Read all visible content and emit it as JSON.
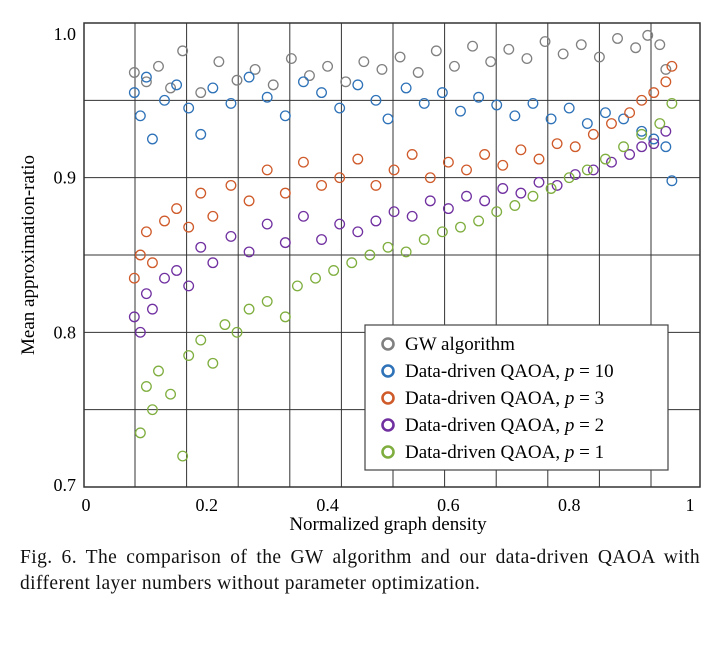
{
  "chart_data": {
    "type": "scatter",
    "xlabel": "Normalized graph density",
    "ylabel": "Mean approximation-ratio",
    "xlim": [
      0,
      1.02
    ],
    "ylim": [
      0.7,
      1.0
    ],
    "xticks": [
      0,
      0.2,
      0.4,
      0.6,
      0.8,
      1
    ],
    "xtick_labels": [
      "0",
      "0.2",
      "0.4",
      "0.6",
      "0.8",
      "1"
    ],
    "yticks": [
      0.7,
      0.8,
      0.9,
      1.0
    ],
    "ytick_labels": [
      "0.7",
      "0.8",
      "0.9",
      "1.0"
    ],
    "grid": true,
    "legend_placement": "bottom-right",
    "marker": "open-circle",
    "series": [
      {
        "name": "GW algorithm",
        "legend_text": "GW algorithm",
        "legend_p": "",
        "color": "#808080",
        "points": [
          [
            0.08,
            0.968
          ],
          [
            0.1,
            0.962
          ],
          [
            0.12,
            0.972
          ],
          [
            0.14,
            0.958
          ],
          [
            0.16,
            0.982
          ],
          [
            0.19,
            0.955
          ],
          [
            0.22,
            0.975
          ],
          [
            0.25,
            0.963
          ],
          [
            0.28,
            0.97
          ],
          [
            0.31,
            0.96
          ],
          [
            0.34,
            0.977
          ],
          [
            0.37,
            0.966
          ],
          [
            0.4,
            0.972
          ],
          [
            0.43,
            0.962
          ],
          [
            0.46,
            0.975
          ],
          [
            0.49,
            0.97
          ],
          [
            0.52,
            0.978
          ],
          [
            0.55,
            0.968
          ],
          [
            0.58,
            0.982
          ],
          [
            0.61,
            0.972
          ],
          [
            0.64,
            0.985
          ],
          [
            0.67,
            0.975
          ],
          [
            0.7,
            0.983
          ],
          [
            0.73,
            0.977
          ],
          [
            0.76,
            0.988
          ],
          [
            0.79,
            0.98
          ],
          [
            0.82,
            0.986
          ],
          [
            0.85,
            0.978
          ],
          [
            0.88,
            0.99
          ],
          [
            0.91,
            0.984
          ],
          [
            0.93,
            0.992
          ],
          [
            0.95,
            0.986
          ],
          [
            0.96,
            0.97
          ]
        ]
      },
      {
        "name": "Data-driven QAOA, p = 10",
        "legend_text": "Data-driven QAOA, ",
        "legend_p": "p",
        "legend_val": " = 10",
        "color": "#2e72b8",
        "points": [
          [
            0.08,
            0.955
          ],
          [
            0.09,
            0.94
          ],
          [
            0.1,
            0.965
          ],
          [
            0.11,
            0.925
          ],
          [
            0.13,
            0.95
          ],
          [
            0.15,
            0.96
          ],
          [
            0.17,
            0.945
          ],
          [
            0.19,
            0.928
          ],
          [
            0.21,
            0.958
          ],
          [
            0.24,
            0.948
          ],
          [
            0.27,
            0.965
          ],
          [
            0.3,
            0.952
          ],
          [
            0.33,
            0.94
          ],
          [
            0.36,
            0.962
          ],
          [
            0.39,
            0.955
          ],
          [
            0.42,
            0.945
          ],
          [
            0.45,
            0.96
          ],
          [
            0.48,
            0.95
          ],
          [
            0.5,
            0.938
          ],
          [
            0.53,
            0.958
          ],
          [
            0.56,
            0.948
          ],
          [
            0.59,
            0.955
          ],
          [
            0.62,
            0.943
          ],
          [
            0.65,
            0.952
          ],
          [
            0.68,
            0.947
          ],
          [
            0.71,
            0.94
          ],
          [
            0.74,
            0.948
          ],
          [
            0.77,
            0.938
          ],
          [
            0.8,
            0.945
          ],
          [
            0.83,
            0.935
          ],
          [
            0.86,
            0.942
          ],
          [
            0.89,
            0.938
          ],
          [
            0.92,
            0.93
          ],
          [
            0.94,
            0.925
          ],
          [
            0.96,
            0.92
          ],
          [
            0.97,
            0.898
          ]
        ]
      },
      {
        "name": "Data-driven QAOA, p = 3",
        "legend_text": "Data-driven QAOA, ",
        "legend_p": "p",
        "legend_val": " = 3",
        "color": "#cf5a2a",
        "points": [
          [
            0.08,
            0.835
          ],
          [
            0.09,
            0.85
          ],
          [
            0.1,
            0.865
          ],
          [
            0.11,
            0.845
          ],
          [
            0.13,
            0.872
          ],
          [
            0.15,
            0.88
          ],
          [
            0.17,
            0.868
          ],
          [
            0.19,
            0.89
          ],
          [
            0.21,
            0.875
          ],
          [
            0.24,
            0.895
          ],
          [
            0.27,
            0.885
          ],
          [
            0.3,
            0.905
          ],
          [
            0.33,
            0.89
          ],
          [
            0.36,
            0.91
          ],
          [
            0.39,
            0.895
          ],
          [
            0.42,
            0.9
          ],
          [
            0.45,
            0.912
          ],
          [
            0.48,
            0.895
          ],
          [
            0.51,
            0.905
          ],
          [
            0.54,
            0.915
          ],
          [
            0.57,
            0.9
          ],
          [
            0.6,
            0.91
          ],
          [
            0.63,
            0.905
          ],
          [
            0.66,
            0.915
          ],
          [
            0.69,
            0.908
          ],
          [
            0.72,
            0.918
          ],
          [
            0.75,
            0.912
          ],
          [
            0.78,
            0.922
          ],
          [
            0.81,
            0.92
          ],
          [
            0.84,
            0.928
          ],
          [
            0.87,
            0.935
          ],
          [
            0.9,
            0.942
          ],
          [
            0.92,
            0.95
          ],
          [
            0.94,
            0.955
          ],
          [
            0.96,
            0.962
          ],
          [
            0.97,
            0.972
          ]
        ]
      },
      {
        "name": "Data-driven QAOA, p = 2",
        "legend_text": "Data-driven QAOA, ",
        "legend_p": "p",
        "legend_val": " = 2",
        "color": "#7030a0",
        "points": [
          [
            0.08,
            0.81
          ],
          [
            0.09,
            0.8
          ],
          [
            0.1,
            0.825
          ],
          [
            0.11,
            0.815
          ],
          [
            0.13,
            0.835
          ],
          [
            0.15,
            0.84
          ],
          [
            0.17,
            0.83
          ],
          [
            0.19,
            0.855
          ],
          [
            0.21,
            0.845
          ],
          [
            0.24,
            0.862
          ],
          [
            0.27,
            0.852
          ],
          [
            0.3,
            0.87
          ],
          [
            0.33,
            0.858
          ],
          [
            0.36,
            0.875
          ],
          [
            0.39,
            0.86
          ],
          [
            0.42,
            0.87
          ],
          [
            0.45,
            0.865
          ],
          [
            0.48,
            0.872
          ],
          [
            0.51,
            0.878
          ],
          [
            0.54,
            0.875
          ],
          [
            0.57,
            0.885
          ],
          [
            0.6,
            0.88
          ],
          [
            0.63,
            0.888
          ],
          [
            0.66,
            0.885
          ],
          [
            0.69,
            0.893
          ],
          [
            0.72,
            0.89
          ],
          [
            0.75,
            0.897
          ],
          [
            0.78,
            0.895
          ],
          [
            0.81,
            0.902
          ],
          [
            0.84,
            0.905
          ],
          [
            0.87,
            0.91
          ],
          [
            0.9,
            0.915
          ],
          [
            0.92,
            0.92
          ],
          [
            0.94,
            0.922
          ],
          [
            0.96,
            0.93
          ]
        ]
      },
      {
        "name": "Data-driven QAOA, p = 1",
        "legend_text": "Data-driven QAOA, ",
        "legend_p": "p",
        "legend_val": " = 1",
        "color": "#7fae3e",
        "points": [
          [
            0.09,
            0.735
          ],
          [
            0.1,
            0.765
          ],
          [
            0.11,
            0.75
          ],
          [
            0.12,
            0.775
          ],
          [
            0.14,
            0.76
          ],
          [
            0.16,
            0.72
          ],
          [
            0.17,
            0.785
          ],
          [
            0.19,
            0.795
          ],
          [
            0.21,
            0.78
          ],
          [
            0.23,
            0.805
          ],
          [
            0.25,
            0.8
          ],
          [
            0.27,
            0.815
          ],
          [
            0.3,
            0.82
          ],
          [
            0.33,
            0.81
          ],
          [
            0.35,
            0.83
          ],
          [
            0.38,
            0.835
          ],
          [
            0.41,
            0.84
          ],
          [
            0.44,
            0.845
          ],
          [
            0.47,
            0.85
          ],
          [
            0.5,
            0.855
          ],
          [
            0.53,
            0.852
          ],
          [
            0.56,
            0.86
          ],
          [
            0.59,
            0.865
          ],
          [
            0.62,
            0.868
          ],
          [
            0.65,
            0.872
          ],
          [
            0.68,
            0.878
          ],
          [
            0.71,
            0.882
          ],
          [
            0.74,
            0.888
          ],
          [
            0.77,
            0.893
          ],
          [
            0.8,
            0.9
          ],
          [
            0.83,
            0.905
          ],
          [
            0.86,
            0.912
          ],
          [
            0.89,
            0.92
          ],
          [
            0.92,
            0.928
          ],
          [
            0.95,
            0.935
          ],
          [
            0.97,
            0.948
          ]
        ]
      }
    ]
  },
  "caption": "Fig. 6. The comparison of the GW algorithm and our data-driven QAOA with different layer numbers without parameter optimization."
}
